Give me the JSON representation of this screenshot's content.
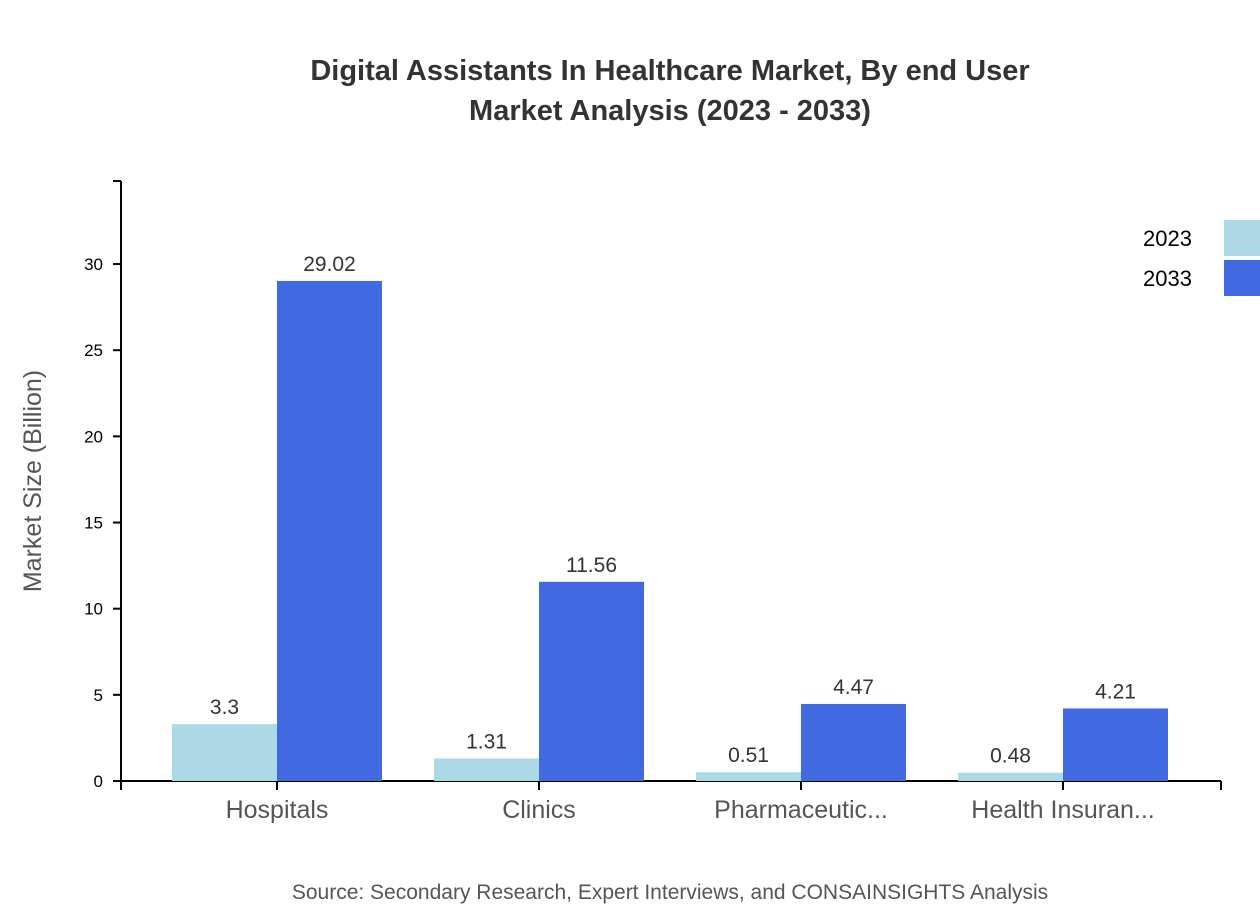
{
  "chart_data": {
    "type": "bar",
    "title_lines": [
      "Digital Assistants In Healthcare Market, By end User",
      "Market Analysis (2023 - 2033)"
    ],
    "xlabel": "",
    "ylabel": "Market Size (Billion)",
    "ylim": [
      0,
      34.82
    ],
    "yticks": [
      0,
      5,
      10,
      15,
      20,
      25,
      30
    ],
    "categories": [
      "Hospitals",
      "Clinics",
      "Pharmaceutic...",
      "Health Insuran..."
    ],
    "series": [
      {
        "name": "2023",
        "color": "#add8e6",
        "values": [
          3.3,
          1.31,
          0.51,
          0.48
        ]
      },
      {
        "name": "2033",
        "color": "#4169e1",
        "values": [
          29.02,
          11.56,
          4.47,
          4.21
        ]
      }
    ],
    "legend": "top-right",
    "grid": false,
    "source": "Source: Secondary Research, Expert Interviews, and CONSAINSIGHTS Analysis"
  }
}
